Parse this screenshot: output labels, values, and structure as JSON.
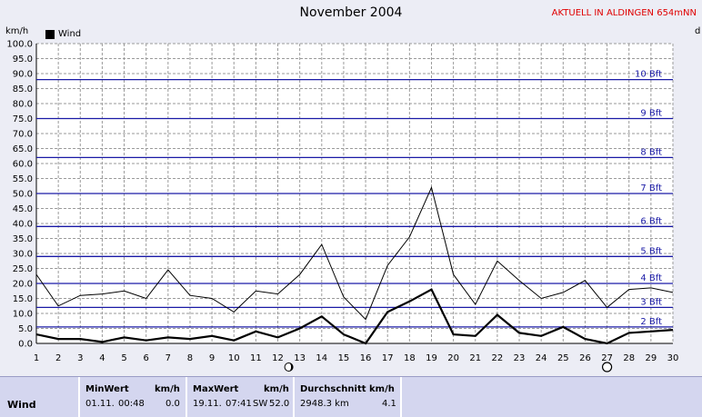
{
  "chart_data": {
    "type": "line",
    "title": "November 2004",
    "station_label": "AKTUELL IN ALDINGEN 654mNN",
    "unit_left": "km/h",
    "unit_right": "d",
    "x": [
      1,
      2,
      3,
      4,
      5,
      6,
      7,
      8,
      9,
      10,
      11,
      12,
      13,
      14,
      15,
      16,
      17,
      18,
      19,
      20,
      21,
      22,
      23,
      24,
      25,
      26,
      27,
      28,
      29,
      30
    ],
    "xlim": [
      1,
      30
    ],
    "ylim": [
      0,
      100
    ],
    "ytick_step": 5,
    "legend_label": "Wind",
    "series": [
      {
        "name": "Wind",
        "color": "#000000",
        "values": [
          3,
          1.5,
          1.5,
          0.5,
          2,
          1,
          2,
          1.5,
          2.5,
          1,
          4,
          2,
          5,
          9,
          3,
          0,
          10.5,
          14,
          18,
          3,
          2.5,
          9.5,
          3.5,
          2.5,
          5.5,
          1.5,
          0,
          3.5,
          4,
          4.5
        ]
      },
      {
        "role": "gust",
        "color": "#000000",
        "values": [
          23,
          12.5,
          16,
          16.5,
          17.5,
          15,
          24.5,
          16,
          15,
          10.5,
          17.5,
          16.5,
          23,
          33,
          15.5,
          8,
          26,
          35.5,
          52,
          23,
          13,
          27.5,
          21,
          15,
          17,
          21,
          12,
          18,
          18.5,
          17
        ]
      }
    ],
    "beaufort": [
      {
        "label": "2 Bft",
        "value": 5.5
      },
      {
        "label": "3 Bft",
        "value": 12
      },
      {
        "label": "4 Bft",
        "value": 20
      },
      {
        "label": "5 Bft",
        "value": 29
      },
      {
        "label": "6 Bft",
        "value": 39
      },
      {
        "label": "7 Bft",
        "value": 50
      },
      {
        "label": "8 Bft",
        "value": 62
      },
      {
        "label": "9 Bft",
        "value": 75
      },
      {
        "label": "10 Bft",
        "value": 88
      }
    ],
    "moon_markers": [
      {
        "x": 12.5,
        "phase": "new"
      },
      {
        "x": 27,
        "phase": "full"
      }
    ],
    "grid": true,
    "legend_position": "top-left"
  },
  "table": {
    "row_label": "Wind",
    "min_label": "MinWert",
    "min_unit": "km/h",
    "min_date": "01.11.",
    "min_time": "00:48",
    "min_value": "0.0",
    "max_label": "MaxWert",
    "max_unit": "km/h",
    "max_date": "19.11.",
    "max_time": "07:41",
    "max_dir": "SW",
    "max_value": "52.0",
    "avg_label": "Durchschnitt",
    "avg_unit": "km/h",
    "avg_distance": "2948.3 km",
    "avg_value": "4.1"
  }
}
